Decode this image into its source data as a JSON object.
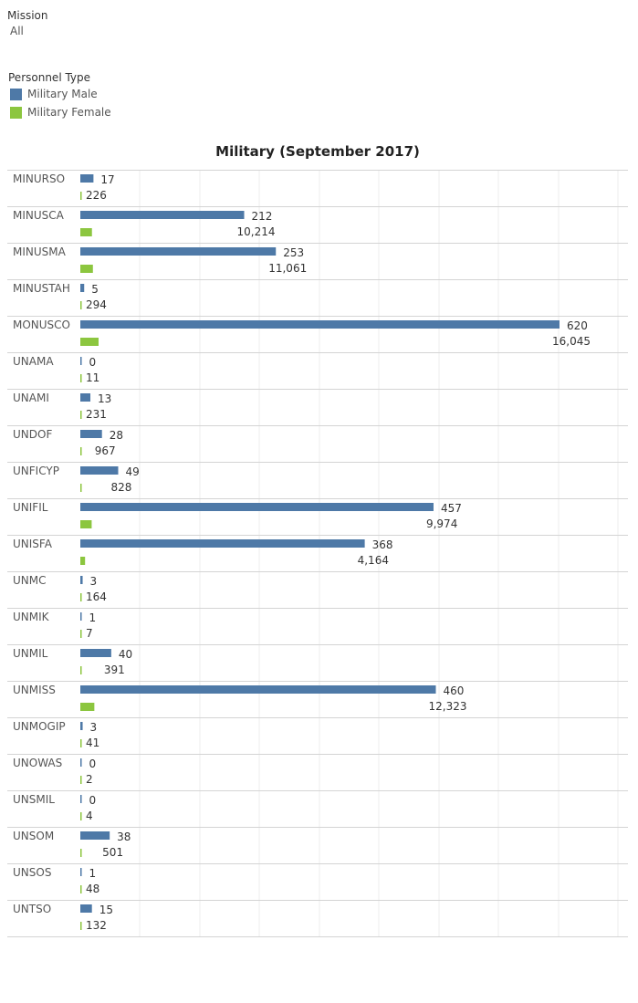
{
  "filter": {
    "title": "Mission",
    "value": "All"
  },
  "legend": {
    "title": "Personnel Type",
    "items": [
      {
        "label": "Military Male",
        "color": "#4e79a7"
      },
      {
        "label": "Military Female",
        "color": "#8cc63f"
      }
    ]
  },
  "chart_data": {
    "type": "bar",
    "orientation": "horizontal",
    "title": "Military (September 2017)",
    "xlabel": "",
    "ylabel": "",
    "grid": true,
    "legend_placement": "top-left",
    "categories": [
      "MINURSO",
      "MINUSCA",
      "MINUSMA",
      "MINUSTAH",
      "MONUSCO",
      "UNAMA",
      "UNAMI",
      "UNDOF",
      "UNFICYP",
      "UNIFIL",
      "UNISFA",
      "UNMC",
      "UNMIK",
      "UNMIL",
      "UNMISS",
      "UNMOGIP",
      "UNOWAS",
      "UNSMIL",
      "UNSOM",
      "UNSOS",
      "UNTSO"
    ],
    "series": [
      {
        "name": "Military Male",
        "color": "#4e79a7",
        "values": [
          17,
          212,
          253,
          5,
          620,
          0,
          13,
          28,
          49,
          457,
          368,
          3,
          1,
          40,
          460,
          3,
          0,
          0,
          38,
          1,
          15
        ]
      },
      {
        "name": "Military Female",
        "color": "#8cc63f",
        "values": [
          226,
          10214,
          11061,
          294,
          16045,
          11,
          231,
          967,
          828,
          9974,
          4164,
          164,
          7,
          391,
          12323,
          41,
          2,
          4,
          501,
          48,
          132
        ]
      }
    ],
    "value_labels": [
      [
        "17",
        "212",
        "253",
        "5",
        "620",
        "0",
        "13",
        "28",
        "49",
        "457",
        "368",
        "3",
        "1",
        "40",
        "460",
        "3",
        "0",
        "0",
        "38",
        "1",
        "15"
      ],
      [
        "226",
        "10,214",
        "11,061",
        "294",
        "16,045",
        "11",
        "231",
        "967",
        "828",
        "9,974",
        "4,164",
        "164",
        "7",
        "391",
        "12,323",
        "41",
        "2",
        "4",
        "501",
        "48",
        "132"
      ]
    ]
  }
}
